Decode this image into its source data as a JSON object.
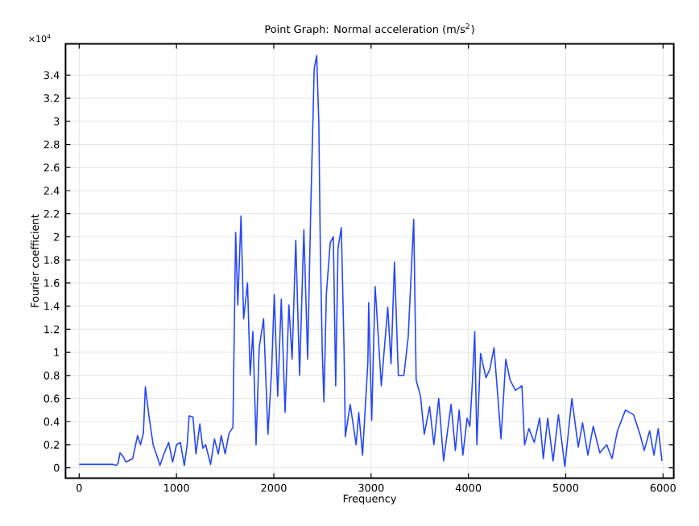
{
  "chart_data": {
    "type": "line",
    "title": "Point Graph: Normal acceleration (m/s$^{2}$)",
    "xlabel": "Frequency",
    "ylabel": "Fourier coefficient",
    "annotations": [
      "×10$^{4}$"
    ],
    "xlim": [
      -140,
      6110
    ],
    "ylim": [
      -0.09,
      3.67
    ],
    "xticks": [
      0,
      1000,
      2000,
      3000,
      4000,
      5000,
      6000
    ],
    "yticks": [
      0,
      0.2,
      0.4,
      0.6,
      0.8,
      1,
      1.2,
      1.4,
      1.6,
      1.8,
      2,
      2.2,
      2.4,
      2.6,
      2.8,
      3,
      3.2,
      3.4
    ],
    "grid": true,
    "series": [
      {
        "color": "#2346ff",
        "x": [
          0,
          100,
          200,
          300,
          350,
          380,
          400,
          420,
          450,
          480,
          550,
          600,
          630,
          660,
          680,
          720,
          760,
          800,
          830,
          870,
          920,
          960,
          1000,
          1040,
          1080,
          1110,
          1130,
          1170,
          1200,
          1240,
          1270,
          1300,
          1350,
          1390,
          1430,
          1460,
          1500,
          1540,
          1580,
          1608,
          1630,
          1663,
          1690,
          1730,
          1757,
          1785,
          1818,
          1850,
          1895,
          1940,
          1978,
          2005,
          2040,
          2077,
          2116,
          2155,
          2188,
          2226,
          2265,
          2309,
          2348,
          2380,
          2415,
          2441,
          2463,
          2478,
          2498,
          2515,
          2540,
          2580,
          2612,
          2636,
          2660,
          2694,
          2722,
          2735,
          2785,
          2846,
          2873,
          2912,
          2967,
          2975,
          3006,
          3041,
          3050,
          3105,
          3171,
          3205,
          3240,
          3280,
          3337,
          3381,
          3438,
          3463,
          3508,
          3546,
          3601,
          3645,
          3695,
          3745,
          3822,
          3866,
          3905,
          3943,
          3987,
          4015,
          4042,
          4065,
          4087,
          4125,
          4180,
          4219,
          4263,
          4302,
          4335,
          4384,
          4428,
          4484,
          4550,
          4577,
          4622,
          4677,
          4732,
          4770,
          4815,
          4870,
          4925,
          4991,
          5063,
          5129,
          5173,
          5228,
          5283,
          5350,
          5421,
          5476,
          5531,
          5614,
          5697,
          5763,
          5807,
          5862,
          5907,
          5951,
          5989
        ],
        "values": [
          0.03,
          0.03,
          0.03,
          0.03,
          0.03,
          0.02,
          0.04,
          0.13,
          0.1,
          0.05,
          0.08,
          0.28,
          0.2,
          0.3,
          0.7,
          0.43,
          0.2,
          0.1,
          0.02,
          0.12,
          0.22,
          0.05,
          0.2,
          0.22,
          0.02,
          0.2,
          0.45,
          0.44,
          0.12,
          0.38,
          0.17,
          0.2,
          0.03,
          0.25,
          0.12,
          0.28,
          0.12,
          0.3,
          0.35,
          2.04,
          1.41,
          2.18,
          1.29,
          1.6,
          0.8,
          1.18,
          0.2,
          1.04,
          1.29,
          0.29,
          0.85,
          1.5,
          0.62,
          1.46,
          0.48,
          1.41,
          0.94,
          1.97,
          0.8,
          2.06,
          0.94,
          2.25,
          3.45,
          3.57,
          2.98,
          1.9,
          1.01,
          0.57,
          1.5,
          1.95,
          2.0,
          0.71,
          1.9,
          2.08,
          1.03,
          0.27,
          0.55,
          0.2,
          0.48,
          0.11,
          0.92,
          1.43,
          0.41,
          1.57,
          1.46,
          0.71,
          1.39,
          0.9,
          1.78,
          0.8,
          0.8,
          1.13,
          2.15,
          0.76,
          0.62,
          0.29,
          0.53,
          0.2,
          0.6,
          0.06,
          0.55,
          0.15,
          0.5,
          0.11,
          0.43,
          0.36,
          0.76,
          1.18,
          0.2,
          0.99,
          0.78,
          0.85,
          1.04,
          0.62,
          0.25,
          0.94,
          0.76,
          0.67,
          0.71,
          0.2,
          0.34,
          0.22,
          0.43,
          0.08,
          0.43,
          0.06,
          0.46,
          0.01,
          0.6,
          0.18,
          0.39,
          0.11,
          0.36,
          0.13,
          0.2,
          0.08,
          0.32,
          0.5,
          0.46,
          0.29,
          0.15,
          0.32,
          0.11,
          0.34,
          0.06
        ]
      }
    ]
  }
}
